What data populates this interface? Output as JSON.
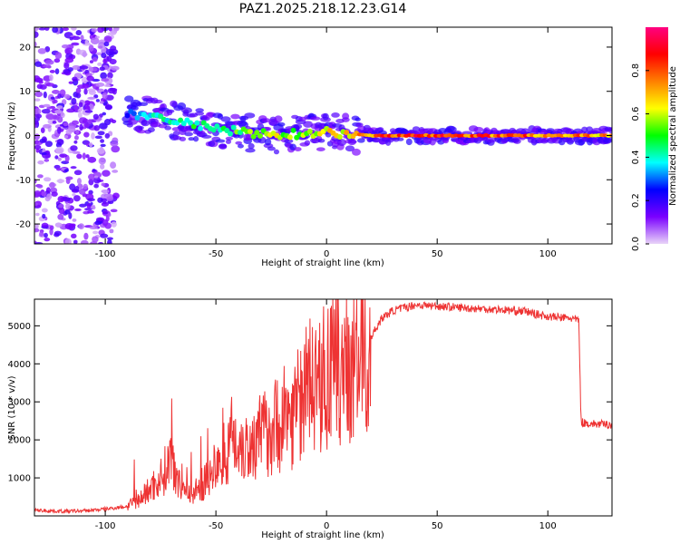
{
  "title": "PAZ1.2025.218.12.23.G14",
  "chart_data": [
    {
      "type": "heatmap",
      "title": "PAZ1.2025.218.12.23.G14",
      "xlabel": "Height of straight line (km)",
      "ylabel": "Frequency (Hz)",
      "xlim": [
        -132,
        129
      ],
      "ylim": [
        -24.5,
        24.5
      ],
      "xticks": [
        -100,
        -50,
        0,
        50,
        100
      ],
      "yticks": [
        -20,
        -10,
        0,
        10,
        20
      ],
      "colorbar": {
        "label": "Normalized spectral amplitude",
        "range": [
          0,
          1
        ],
        "ticks": [
          0.0,
          0.2,
          0.4,
          0.6,
          0.8
        ],
        "tick_labels": [
          "0.0",
          "0.2",
          "0.4",
          "0.6",
          "0.8"
        ],
        "colors": [
          "#e9d5f8",
          "#7a00ff",
          "#0000ff",
          "#00ffff",
          "#00ff00",
          "#ffff00",
          "#ff8000",
          "#ff0000",
          "#ff0080"
        ]
      },
      "ridge": [
        {
          "x": -90,
          "y": 5,
          "amp": 0.3
        },
        {
          "x": -80,
          "y": 4.5,
          "amp": 0.4
        },
        {
          "x": -70,
          "y": 3.5,
          "amp": 0.45
        },
        {
          "x": -60,
          "y": 2.5,
          "amp": 0.5
        },
        {
          "x": -50,
          "y": 1.5,
          "amp": 0.45
        },
        {
          "x": -40,
          "y": 0.8,
          "amp": 0.55
        },
        {
          "x": -30,
          "y": 0.3,
          "amp": 0.6
        },
        {
          "x": -20,
          "y": 0.2,
          "amp": 0.65
        },
        {
          "x": -10,
          "y": 0.5,
          "amp": 0.6
        },
        {
          "x": 0,
          "y": 1,
          "amp": 0.7
        },
        {
          "x": 10,
          "y": 0.3,
          "amp": 0.75
        },
        {
          "x": 20,
          "y": 0,
          "amp": 0.85
        },
        {
          "x": 40,
          "y": 0,
          "amp": 0.9
        },
        {
          "x": 60,
          "y": 0,
          "amp": 0.9
        },
        {
          "x": 80,
          "y": 0,
          "amp": 0.88
        },
        {
          "x": 100,
          "y": 0,
          "amp": 0.85
        },
        {
          "x": 120,
          "y": 0,
          "amp": 0.8
        }
      ],
      "noise_region": {
        "x_from": -132,
        "x_to": -95,
        "y_from": -24.5,
        "y_to": 24.5
      }
    },
    {
      "type": "line",
      "xlabel": "Height of straight line (km)",
      "ylabel": "SNR (10 * v/v)",
      "xlim": [
        -132,
        129
      ],
      "ylim": [
        0,
        5700
      ],
      "xticks": [
        -100,
        -50,
        0,
        50,
        100
      ],
      "yticks": [
        1000,
        2000,
        3000,
        4000,
        5000
      ],
      "color": "#ee3333",
      "series": [
        {
          "x": [
            -132,
            -120,
            -110,
            -100,
            -90,
            -85,
            -80,
            -75,
            -72,
            -70,
            -68,
            -65,
            -60,
            -55,
            -50,
            -45,
            -40,
            -35,
            -30,
            -25,
            -20,
            -15,
            -10,
            -5,
            0,
            5,
            10,
            15,
            20,
            25,
            30,
            40,
            50,
            60,
            70,
            80,
            90,
            95,
            100,
            105,
            110,
            114,
            115,
            116,
            120,
            129
          ],
          "y": [
            150,
            120,
            130,
            180,
            250,
            400,
            700,
            1000,
            1300,
            1600,
            1200,
            700,
            600,
            900,
            1200,
            1800,
            2000,
            1800,
            2100,
            2300,
            2500,
            2700,
            3300,
            3500,
            3600,
            3900,
            4000,
            4100,
            4700,
            5200,
            5400,
            5550,
            5520,
            5480,
            5450,
            5420,
            5380,
            5300,
            5250,
            5220,
            5200,
            5150,
            2500,
            2450,
            2420,
            2400
          ]
        }
      ]
    }
  ]
}
